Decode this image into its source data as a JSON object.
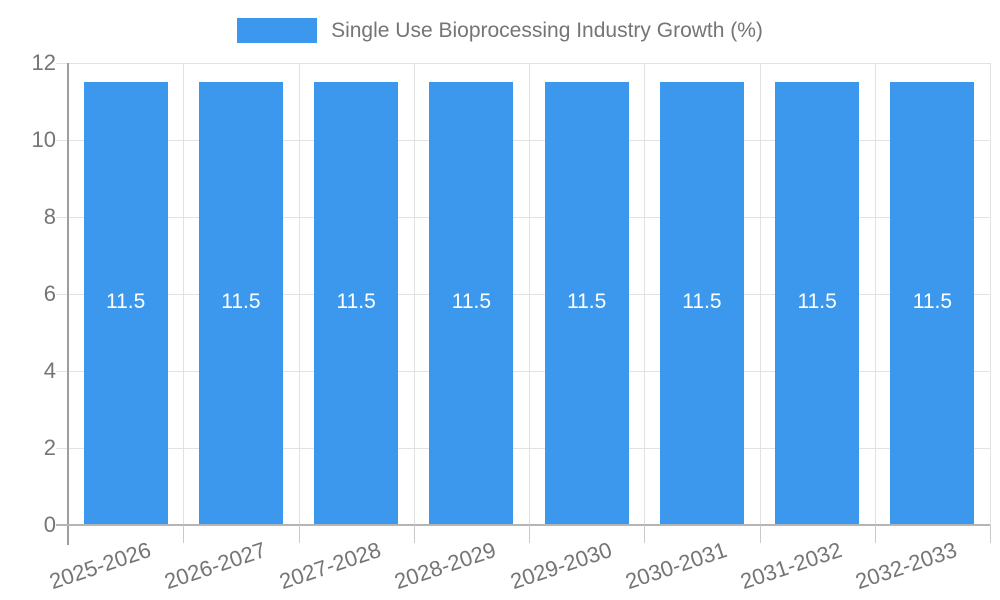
{
  "legend": {
    "label": "Single Use Bioprocessing Industry Growth (%)"
  },
  "colors": {
    "bar": "#3B98EC",
    "axis_text": "#757575",
    "grid": "#E2E2E2",
    "y_axis_line": "#9E9E9E",
    "x_axis_line": "#B5B5B5",
    "x_tick": "#C9C9C9",
    "bar_label_text": "#FFFFFF",
    "background": "#FFFFFF"
  },
  "chart_data": {
    "type": "bar",
    "title": "",
    "categories": [
      "2025-2026",
      "2026-2027",
      "2027-2028",
      "2028-2029",
      "2029-2030",
      "2030-2031",
      "2031-2032",
      "2032-2033"
    ],
    "series": [
      {
        "name": "Single Use Bioprocessing Industry Growth (%)",
        "values": [
          11.5,
          11.5,
          11.5,
          11.5,
          11.5,
          11.5,
          11.5,
          11.5
        ]
      }
    ],
    "bar_value_labels": [
      "11.5",
      "11.5",
      "11.5",
      "11.5",
      "11.5",
      "11.5",
      "11.5",
      "11.5"
    ],
    "xlabel": "",
    "ylabel": "",
    "ylim": [
      0,
      12
    ],
    "yticks": [
      0,
      2,
      4,
      6,
      8,
      10,
      12
    ],
    "grid": true,
    "legend_position": "top-center"
  }
}
